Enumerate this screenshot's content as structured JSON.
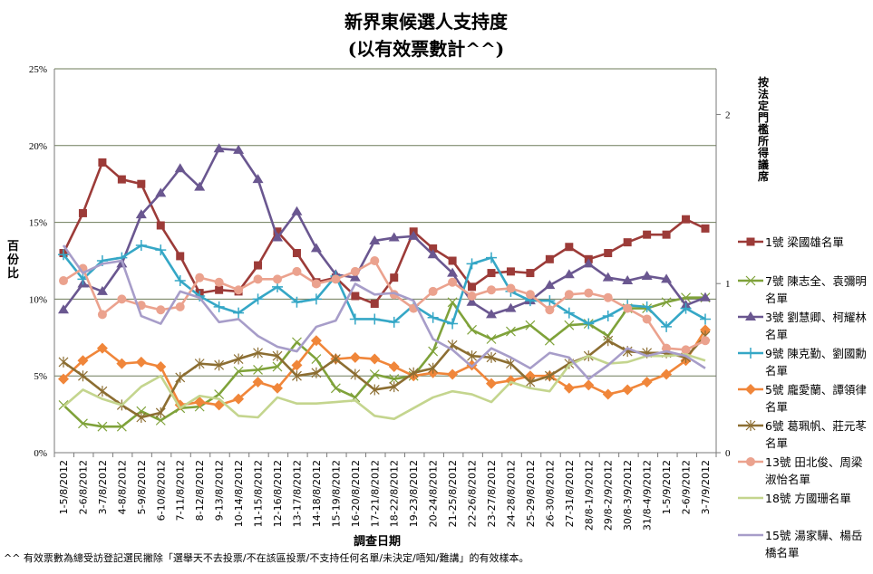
{
  "chart_data": {
    "type": "line",
    "title": "新界東候選人支持度",
    "subtitle": "(以有效票數計^^)",
    "xlabel": "調查日期",
    "ylabel": "百份比",
    "y2label": "按法定門檻所得議席",
    "ylim": [
      0,
      25
    ],
    "yticks": [
      "0%",
      "5%",
      "10%",
      "15%",
      "20%",
      "25%"
    ],
    "y2lim": [
      0,
      2.27
    ],
    "y2ticks": [
      "0",
      "1",
      "2"
    ],
    "grid": true,
    "legend_position": "right",
    "footnote": "^^ 有效票數為總受訪登記選民撇除「選舉天不去投票/不在該區投票/不支持任何名單/未決定/唔知/難講」的有效樣本。",
    "categories": [
      "1-5/8/2012",
      "2-6/8/2012",
      "3-7/8/2012",
      "4-8/8/2012",
      "5-9/8/2012",
      "6-10/8/2012",
      "7-11/8/2012",
      "8-12/8/2012",
      "9-13/8/2012",
      "10-14/8/2012",
      "11-15/8/2012",
      "12-16/8/2012",
      "13-17/8/2012",
      "14-18/8/2012",
      "15-19/8/2012",
      "16-20/8/2012",
      "17-21/8/2012",
      "18-22/8/2012",
      "19-23/8/2012",
      "20-24/8/2012",
      "21-25/8/2012",
      "22-26/8/2012",
      "23-27/8/2012",
      "24-28/8/2012",
      "25-29/8/2012",
      "26-30/8/2012",
      "27-31/8/2012",
      "28/8-1/9/2012",
      "29/8-2/9/2012",
      "30/8-3/9/2012",
      "31/8-4/9/2012",
      "1-5/9/2012",
      "2-6/9/2012",
      "3-7/9/2012"
    ],
    "series": [
      {
        "name": "1號 梁國雄名單",
        "color": "#9c3b38",
        "marker": "square",
        "values": [
          13,
          15.6,
          18.9,
          17.8,
          17.5,
          14.8,
          12.8,
          10.4,
          10.6,
          10.5,
          12.2,
          14.4,
          13,
          11.1,
          11.4,
          10.2,
          9.7,
          11.4,
          14.4,
          13.3,
          12.5,
          10.8,
          11.7,
          11.8,
          11.7,
          12.6,
          13.4,
          12.6,
          13,
          13.7,
          14.2,
          14.2,
          15.2,
          14.6
        ]
      },
      {
        "name": "7號 陳志全、袁彌明名單",
        "color": "#7fa23a",
        "marker": "x",
        "values": [
          3.1,
          1.9,
          1.7,
          1.7,
          2.7,
          2.1,
          2.9,
          3,
          3.8,
          5.3,
          5.4,
          5.6,
          7.2,
          6.1,
          4.2,
          3.6,
          5.1,
          4.8,
          5,
          6.6,
          9.8,
          8,
          7.4,
          7.9,
          8.3,
          7.3,
          8.3,
          8.4,
          7.6,
          9.4,
          9.4,
          9.8,
          10.1,
          10.1
        ]
      },
      {
        "name": "3號 劉慧卿、柯耀林名單",
        "color": "#6a5790",
        "marker": "triangle",
        "values": [
          9.3,
          11,
          10.5,
          12.3,
          15.5,
          16.9,
          18.5,
          17.3,
          19.8,
          19.7,
          17.8,
          14,
          15.7,
          13.3,
          11.6,
          11.4,
          13.8,
          14,
          14.1,
          12.9,
          11.7,
          9.8,
          9,
          9.4,
          9.9,
          10.9,
          11.6,
          12.3,
          11.4,
          11.2,
          11.5,
          11.3,
          9.6,
          10.1
        ]
      },
      {
        "name": "9號 陳克勤、劉國勳名單",
        "color": "#35a7c6",
        "marker": "plus",
        "values": [
          12.9,
          11.3,
          12.5,
          12.7,
          13.5,
          13.2,
          11.2,
          10.2,
          9.5,
          9.1,
          10,
          10.8,
          9.8,
          10,
          11.5,
          8.7,
          8.7,
          8.5,
          9.6,
          8.8,
          8.4,
          12.3,
          12.7,
          10.5,
          9.9,
          9.9,
          9.1,
          8.4,
          8.9,
          9.6,
          9.5,
          8.2,
          9.4,
          8.7
        ]
      },
      {
        "name": "5號 龐愛蘭、譚領律名單",
        "color": "#f0863a",
        "marker": "diamond",
        "values": [
          4.8,
          6,
          6.8,
          5.8,
          5.9,
          5.6,
          3.1,
          3.3,
          3.1,
          3.5,
          4.6,
          4.2,
          5.7,
          7.3,
          6.1,
          6.2,
          6.1,
          5.6,
          5,
          5.2,
          5.1,
          5.7,
          4.5,
          4.7,
          5,
          5,
          4.2,
          4.4,
          3.8,
          4.1,
          4.6,
          5.1,
          6,
          8
        ]
      },
      {
        "name": "6號 葛珮帆、莊元苳名單",
        "color": "#8c6e32",
        "marker": "star",
        "values": [
          5.9,
          5,
          4,
          3.1,
          2.3,
          2.6,
          4.9,
          5.8,
          5.7,
          6.1,
          6.5,
          6.3,
          5,
          5.2,
          6.1,
          5.1,
          4.1,
          4.3,
          5.2,
          5.5,
          7,
          6.3,
          6.2,
          5.8,
          4.6,
          5,
          5.8,
          6.3,
          7.3,
          6.6,
          6.5,
          6.5,
          6.2,
          7.6
        ]
      },
      {
        "name": "13號 田北俊、周梁淑怡名單",
        "color": "#eba28e",
        "marker": "circle",
        "values": [
          11.2,
          12,
          9,
          10,
          9.6,
          9.3,
          9.5,
          11.4,
          11.1,
          10.6,
          11.3,
          11.3,
          11.8,
          11,
          11.3,
          11.8,
          12.5,
          10.3,
          9.4,
          10.5,
          11.1,
          10.2,
          10.6,
          10.7,
          10.3,
          9.3,
          10.3,
          10.4,
          10.1,
          9.4,
          8.7,
          6.8,
          6.7,
          7.3
        ]
      },
      {
        "name": "18號 方國珊名單",
        "color": "#c4d58e",
        "marker": "none",
        "values": [
          3,
          4.1,
          3.5,
          3.1,
          4.3,
          5,
          2.9,
          3.7,
          3.5,
          2.4,
          2.3,
          3.6,
          3.2,
          3.2,
          3.3,
          3.4,
          2.4,
          2.2,
          2.9,
          3.6,
          4,
          3.8,
          3.3,
          4.6,
          4.2,
          4,
          5.7,
          6.3,
          5.8,
          5.9,
          6.3,
          6.3,
          6.4,
          6
        ]
      },
      {
        "name": "15號 湯家驊、楊岳橋名單",
        "color": "#a79dc9",
        "marker": "none",
        "values": [
          13.5,
          11.7,
          12.3,
          12.5,
          8.9,
          8.4,
          10.5,
          10.1,
          8.5,
          8.7,
          7.6,
          6.9,
          6.6,
          8.2,
          8.6,
          11,
          10.3,
          10.4,
          9.9,
          7.4,
          6.7,
          5.6,
          6.8,
          6.2,
          5.5,
          6.5,
          6.2,
          4.8,
          5.7,
          6.8,
          6.3,
          6.6,
          6.3,
          5.5
        ]
      }
    ]
  }
}
